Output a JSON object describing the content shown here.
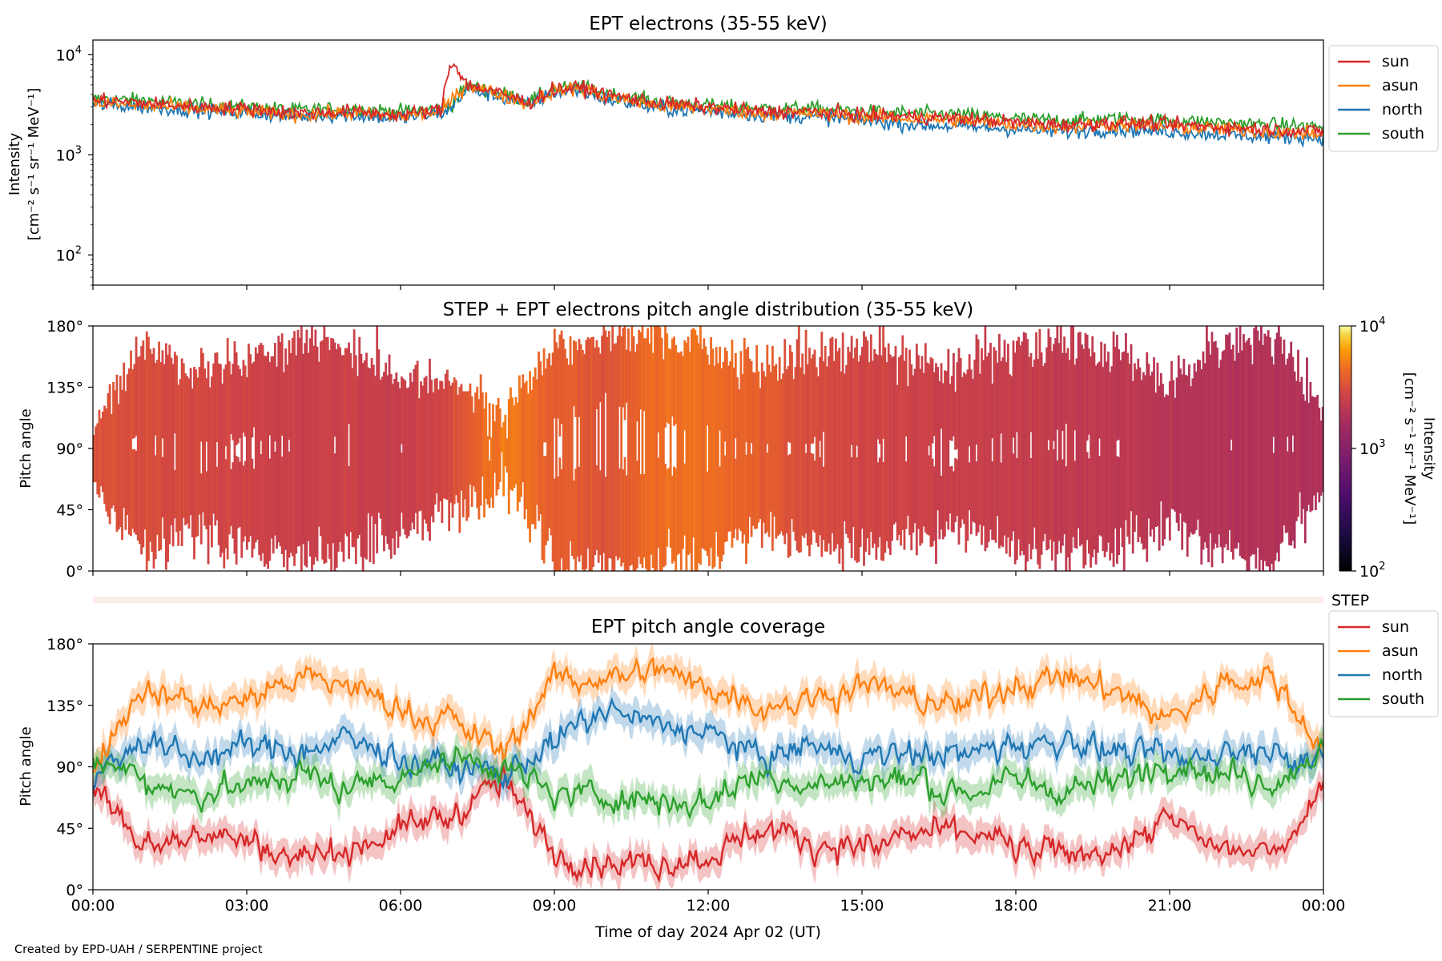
{
  "footer": "Created by EPD-UAH / SERPENTINE project",
  "x_axis": {
    "label": "Time of day 2024 Apr 02 (UT)",
    "range_hours": [
      0,
      24
    ],
    "ticks": [
      "00:00",
      "03:00",
      "06:00",
      "09:00",
      "12:00",
      "15:00",
      "18:00",
      "21:00",
      "00:00"
    ]
  },
  "colors": {
    "sun": "#d62728",
    "asun": "#ff7f0e",
    "north": "#1f77b4",
    "south": "#2ca02c"
  },
  "chart_data": [
    {
      "type": "line",
      "title": "EPT electrons (35-55 keV)",
      "ylabel": [
        "Intensity",
        "[cm⁻² s⁻¹ sr⁻¹ MeV⁻¹]"
      ],
      "yscale": "log",
      "ylim": [
        50,
        14000
      ],
      "yticks": [
        {
          "base": "10",
          "exp": "2",
          "value": 100
        },
        {
          "base": "10",
          "exp": "3",
          "value": 1000
        },
        {
          "base": "10",
          "exp": "4",
          "value": 10000
        }
      ],
      "legend": [
        "sun",
        "asun",
        "north",
        "south"
      ],
      "legend_position": "outside-right",
      "x_hours": [
        0,
        1,
        2,
        3,
        4,
        5,
        6,
        6.8,
        7.0,
        7.3,
        8,
        8.5,
        9,
        9.5,
        10,
        11,
        12,
        13,
        14,
        15,
        16,
        17,
        18,
        19,
        20,
        21,
        22,
        23,
        24
      ],
      "series": [
        {
          "name": "sun",
          "values": [
            3500,
            3300,
            3000,
            2900,
            2600,
            2700,
            2500,
            2800,
            8500,
            5000,
            4000,
            3300,
            4500,
            4700,
            4000,
            3300,
            3000,
            2700,
            2700,
            2500,
            2400,
            2300,
            2100,
            2000,
            2100,
            2000,
            1900,
            1800,
            1700
          ]
        },
        {
          "name": "asun",
          "values": [
            3300,
            3100,
            2900,
            2700,
            2500,
            2600,
            2400,
            2700,
            3500,
            5000,
            3900,
            3200,
            4400,
            4600,
            3800,
            3100,
            2900,
            2600,
            2600,
            2400,
            2300,
            2200,
            2000,
            1900,
            2000,
            1900,
            1800,
            1700,
            1600
          ]
        },
        {
          "name": "north",
          "values": [
            3200,
            3000,
            2800,
            2600,
            2400,
            2500,
            2300,
            2600,
            3000,
            4500,
            3700,
            3100,
            4200,
            4400,
            3600,
            2900,
            2700,
            2500,
            2400,
            2200,
            2000,
            1900,
            1800,
            1700,
            1800,
            1700,
            1600,
            1500,
            1500
          ]
        },
        {
          "name": "south",
          "values": [
            3600,
            3500,
            3200,
            3000,
            2800,
            2900,
            2700,
            2900,
            3200,
            4800,
            4100,
            3400,
            4500,
            4800,
            4100,
            3400,
            3100,
            2900,
            2900,
            2700,
            2600,
            2500,
            2300,
            2200,
            2300,
            2200,
            2100,
            2000,
            1900
          ]
        }
      ]
    },
    {
      "type": "heatmap",
      "title": "STEP + EPT electrons pitch angle distribution (35-55 keV)",
      "ylabel": "Pitch angle",
      "ylim": [
        0,
        180
      ],
      "yticks": [
        "0°",
        "45°",
        "90°",
        "135°",
        "180°"
      ],
      "colorbar": {
        "label": [
          "Intensity",
          "[cm⁻² s⁻¹ sr⁻¹ MeV⁻¹]"
        ],
        "scale": "log",
        "range": [
          100,
          10000
        ],
        "ticks": [
          {
            "base": "10",
            "exp": "2",
            "value": 100
          },
          {
            "base": "10",
            "exp": "3",
            "value": 1000
          },
          {
            "base": "10",
            "exp": "4",
            "value": 10000
          }
        ],
        "colormap": "inferno"
      },
      "intensity_by_hour": [
        3300,
        3100,
        2900,
        2700,
        2500,
        2600,
        2400,
        3000,
        5000,
        3900,
        3300,
        4500,
        4600,
        3800,
        3100,
        2900,
        2600,
        2500,
        2400,
        2300,
        2200,
        2000,
        1900,
        1900,
        1800
      ]
    },
    {
      "type": "line",
      "title": "STEP strip",
      "label": "STEP"
    },
    {
      "type": "line",
      "title": "EPT pitch angle coverage",
      "ylabel": "Pitch angle",
      "ylim": [
        0,
        180
      ],
      "yticks": [
        "0°",
        "45°",
        "90°",
        "135°",
        "180°"
      ],
      "legend": [
        "sun",
        "asun",
        "north",
        "south"
      ],
      "legend_position": "outside-right",
      "x_hours": [
        0,
        1,
        2,
        3,
        4,
        5,
        6,
        7,
        8,
        9,
        10,
        11,
        12,
        13,
        14,
        15,
        16,
        17,
        18,
        19,
        20,
        21,
        22,
        23,
        24
      ],
      "series": [
        {
          "name": "sun",
          "values": [
            80,
            30,
            45,
            35,
            25,
            30,
            45,
            55,
            80,
            25,
            20,
            20,
            25,
            45,
            35,
            30,
            40,
            45,
            30,
            25,
            30,
            50,
            30,
            25,
            75
          ]
        },
        {
          "name": "asun",
          "values": [
            95,
            150,
            135,
            140,
            155,
            150,
            130,
            125,
            100,
            155,
            155,
            160,
            150,
            135,
            140,
            150,
            140,
            135,
            150,
            155,
            145,
            125,
            150,
            155,
            105
          ]
        },
        {
          "name": "north",
          "values": [
            80,
            110,
            95,
            105,
            100,
            110,
            95,
            90,
            85,
            110,
            130,
            120,
            115,
            95,
            105,
            95,
            100,
            100,
            105,
            110,
            100,
            95,
            100,
            105,
            90
          ]
        },
        {
          "name": "south",
          "values": [
            95,
            80,
            70,
            75,
            85,
            75,
            85,
            95,
            90,
            70,
            70,
            65,
            65,
            85,
            75,
            80,
            80,
            70,
            80,
            75,
            80,
            95,
            85,
            80,
            100
          ]
        }
      ]
    }
  ]
}
